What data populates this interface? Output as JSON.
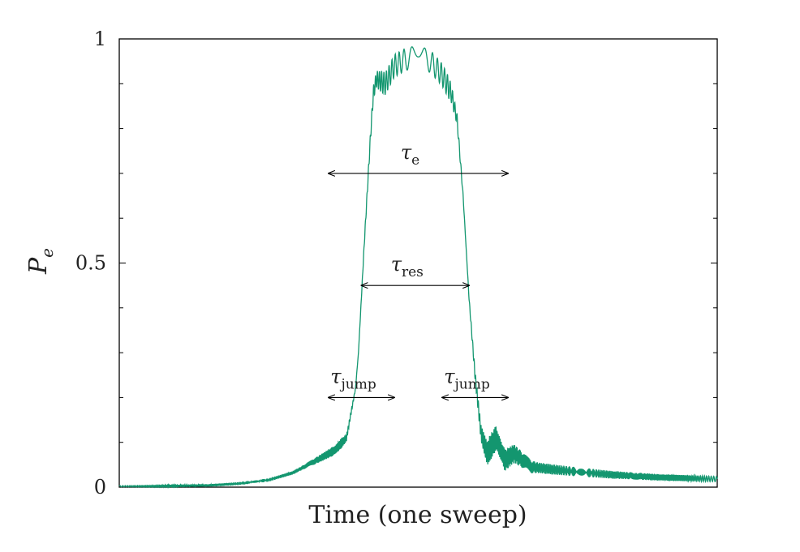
{
  "chart_data": {
    "type": "line",
    "title": "",
    "xlabel": "Time   (one sweep)",
    "ylabel": "P_e",
    "ylabel_main": "P",
    "ylabel_sub": "e",
    "xlim": [
      0,
      1
    ],
    "ylim": [
      0,
      1
    ],
    "yticks": [
      0,
      0.5,
      1
    ],
    "ytick_labels": [
      "0",
      "0.5",
      "1"
    ],
    "grid": false,
    "series_color": "#13966f",
    "axis_color": "#000000",
    "series": [
      {
        "values": [
          [
            0.0,
            0.002
          ],
          [
            0.05,
            0.002
          ],
          [
            0.1,
            0.003
          ],
          [
            0.15,
            0.004
          ],
          [
            0.2,
            0.008
          ],
          [
            0.25,
            0.016
          ],
          [
            0.29,
            0.032
          ],
          [
            0.33,
            0.06
          ],
          [
            0.36,
            0.082
          ],
          [
            0.38,
            0.11
          ],
          [
            0.395,
            0.22
          ],
          [
            0.4,
            0.3
          ],
          [
            0.41,
            0.55
          ],
          [
            0.42,
            0.78
          ],
          [
            0.425,
            0.88
          ],
          [
            0.43,
            0.91
          ],
          [
            0.445,
            0.9
          ],
          [
            0.46,
            0.94
          ],
          [
            0.48,
            0.955
          ],
          [
            0.5,
            0.96
          ],
          [
            0.52,
            0.95
          ],
          [
            0.54,
            0.92
          ],
          [
            0.555,
            0.88
          ],
          [
            0.565,
            0.82
          ],
          [
            0.575,
            0.65
          ],
          [
            0.585,
            0.42
          ],
          [
            0.595,
            0.25
          ],
          [
            0.605,
            0.12
          ],
          [
            0.615,
            0.075
          ],
          [
            0.63,
            0.11
          ],
          [
            0.645,
            0.06
          ],
          [
            0.66,
            0.075
          ],
          [
            0.69,
            0.045
          ],
          [
            0.72,
            0.04
          ],
          [
            0.76,
            0.035
          ],
          [
            0.82,
            0.028
          ],
          [
            0.9,
            0.022
          ],
          [
            1.0,
            0.018
          ]
        ],
        "oscillation_amplitude": [
          [
            0.0,
            0.0015
          ],
          [
            0.3,
            0.004
          ],
          [
            0.37,
            0.012
          ],
          [
            0.4,
            0.0
          ],
          [
            0.44,
            0.025
          ],
          [
            0.55,
            0.025
          ],
          [
            0.58,
            0.0
          ],
          [
            0.62,
            0.03
          ],
          [
            0.7,
            0.012
          ],
          [
            0.85,
            0.008
          ],
          [
            1.0,
            0.006
          ]
        ]
      }
    ],
    "annotations": [
      {
        "main": "τ",
        "sub": "e",
        "x1": 0.35,
        "x2": 0.65,
        "y": 0.7
      },
      {
        "main": "τ",
        "sub": "res",
        "x1": 0.405,
        "x2": 0.585,
        "y": 0.45
      },
      {
        "main": "τ",
        "sub": "jump",
        "x1": 0.35,
        "x2": 0.46,
        "y": 0.2
      },
      {
        "main": "τ",
        "sub": "jump",
        "x1": 0.54,
        "x2": 0.65,
        "y": 0.2
      }
    ]
  }
}
